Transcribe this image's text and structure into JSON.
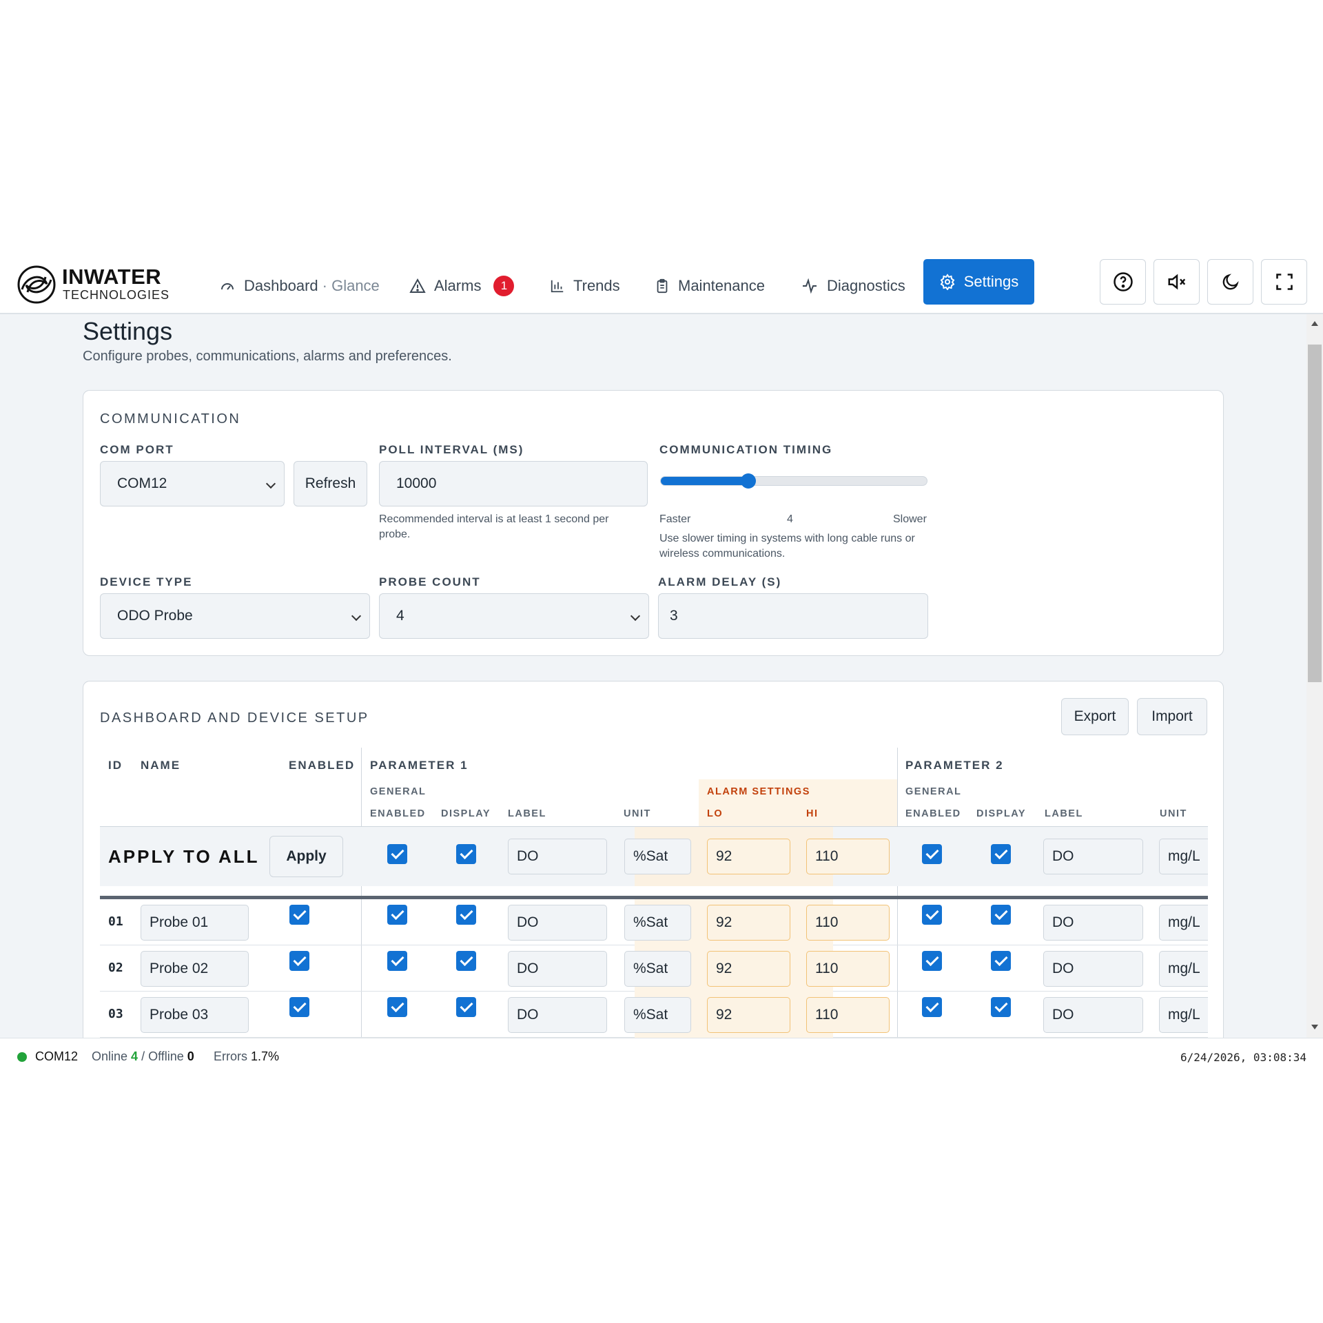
{
  "brand": {
    "name": "INWATER",
    "tagline": "TECHNOLOGIES"
  },
  "nav": {
    "dashboard": {
      "label": "Dashboard",
      "sub": "· Glance"
    },
    "alarms": {
      "label": "Alarms",
      "badge": "1"
    },
    "trends": {
      "label": "Trends"
    },
    "maintenance": {
      "label": "Maintenance"
    },
    "diagnostics": {
      "label": "Diagnostics"
    },
    "settings": {
      "label": "Settings"
    }
  },
  "toolbar_icons": [
    "help-icon",
    "mute-icon",
    "dark-mode-icon",
    "fullscreen-icon"
  ],
  "page": {
    "title": "Settings",
    "subtitle": "Configure probes, communications, alarms and preferences."
  },
  "communication": {
    "title": "COMMUNICATION",
    "com_port": {
      "label": "COM PORT",
      "value": "COM12",
      "refresh_label": "Refresh"
    },
    "poll_interval": {
      "label": "POLL INTERVAL (MS)",
      "value": "10000",
      "help": "Recommended interval is at least 1 second per probe."
    },
    "timing": {
      "label": "COMMUNICATION TIMING",
      "min_label": "Faster",
      "value": "4",
      "max_label": "Slower",
      "fraction": 0.33,
      "help": "Use slower timing in systems with long cable runs or wireless communications."
    },
    "device_type": {
      "label": "DEVICE TYPE",
      "value": "ODO Probe"
    },
    "probe_count": {
      "label": "PROBE COUNT",
      "value": "4"
    },
    "alarm_delay": {
      "label": "ALARM DELAY (S)",
      "value": "3"
    }
  },
  "setup": {
    "title": "DASHBOARD AND DEVICE SETUP",
    "export_label": "Export",
    "import_label": "Import",
    "headers": {
      "id": "ID",
      "name": "NAME",
      "enabled": "ENABLED",
      "param1": "PARAMETER 1",
      "param2": "PARAMETER 2",
      "general": "GENERAL",
      "alarm_settings": "ALARM SETTINGS",
      "sub_enabled": "ENABLED",
      "sub_display": "DISPLAY",
      "sub_label": "LABEL",
      "sub_unit": "UNIT",
      "lo": "LO",
      "hi": "HI"
    },
    "apply_all": {
      "label": "APPLY TO ALL",
      "button": "Apply",
      "p1_label": "DO",
      "p1_unit": "%Sat",
      "lo": "92",
      "hi": "110",
      "p2_label": "DO",
      "p2_unit": "mg/L"
    },
    "rows": [
      {
        "id": "01",
        "name": "Probe 01",
        "p1_label": "DO",
        "p1_unit": "%Sat",
        "lo": "92",
        "hi": "110",
        "p2_label": "DO",
        "p2_unit": "mg/L"
      },
      {
        "id": "02",
        "name": "Probe 02",
        "p1_label": "DO",
        "p1_unit": "%Sat",
        "lo": "92",
        "hi": "110",
        "p2_label": "DO",
        "p2_unit": "mg/L"
      },
      {
        "id": "03",
        "name": "Probe 03",
        "p1_label": "DO",
        "p1_unit": "%Sat",
        "lo": "92",
        "hi": "110",
        "p2_label": "DO",
        "p2_unit": "mg/L"
      }
    ]
  },
  "status": {
    "port": "COM12",
    "online_label": "Online",
    "online": "4",
    "offline_label": "/ Offline",
    "offline": "0",
    "errors_label": "Errors",
    "errors": "1.7%",
    "timestamp": "6/24/2026, 03:08:34",
    "status_color": "#22a33a"
  },
  "colors": {
    "accent": "#1272d3",
    "alarm_bg": "#fdf4e6",
    "alarm_text": "#c2410c",
    "badge": "#e11d2e"
  }
}
